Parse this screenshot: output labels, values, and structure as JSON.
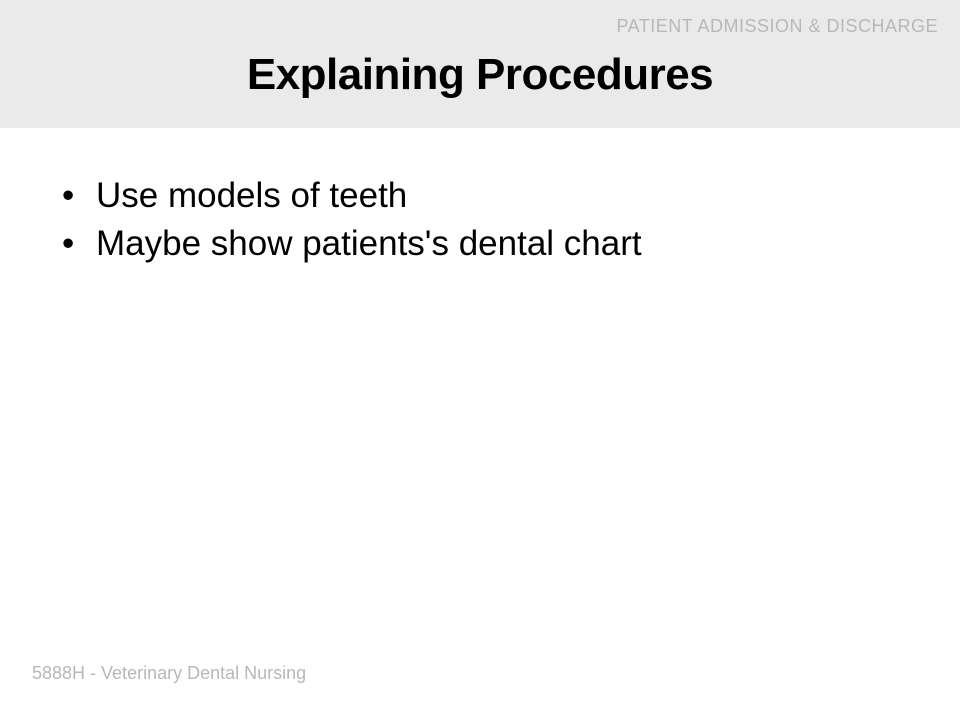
{
  "header": {
    "label": "PATIENT ADMISSION & DISCHARGE",
    "title": "Explaining Procedures"
  },
  "bullets": {
    "item0": "Use models of teeth",
    "item1": "Maybe show patients's dental chart"
  },
  "footer": {
    "text": "5888H - Veterinary Dental Nursing"
  },
  "style": {
    "header_bg": "#eaeaea",
    "body_bg": "#ffffff",
    "title_color": "#000000",
    "title_fontsize": 44,
    "title_weight": 700,
    "label_color": "#b8b8b8",
    "label_fontsize": 18,
    "bullet_color": "#000000",
    "bullet_fontsize": 35,
    "footer_color": "#b8b8b8",
    "footer_fontsize": 18
  }
}
